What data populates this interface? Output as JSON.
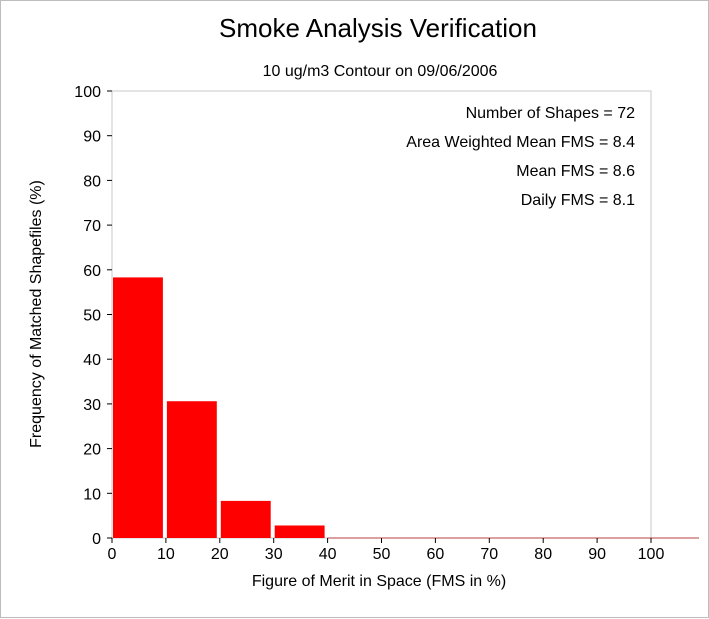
{
  "chart_data": {
    "type": "bar",
    "title": "Smoke Analysis Verification",
    "subtitle": "10 ug/m3 Contour on 09/06/2006",
    "xlabel": "Figure of Merit in Space (FMS in %)",
    "ylabel": "Frequency of Matched Shapefiles (%)",
    "xlim": [
      0,
      100
    ],
    "ylim": [
      0,
      100
    ],
    "x_ticks": [
      "0",
      "10",
      "20",
      "30",
      "40",
      "50",
      "60",
      "70",
      "80",
      "90",
      "100"
    ],
    "y_ticks": [
      "0",
      "10",
      "20",
      "30",
      "40",
      "50",
      "60",
      "70",
      "80",
      "90",
      "100"
    ],
    "bins": [
      {
        "from": 0,
        "to": 10,
        "value": 58.3
      },
      {
        "from": 10,
        "to": 20,
        "value": 30.6
      },
      {
        "from": 20,
        "to": 30,
        "value": 8.3
      },
      {
        "from": 30,
        "to": 40,
        "value": 2.8
      },
      {
        "from": 40,
        "to": 50,
        "value": 0
      },
      {
        "from": 50,
        "to": 60,
        "value": 0
      },
      {
        "from": 60,
        "to": 70,
        "value": 0
      },
      {
        "from": 70,
        "to": 80,
        "value": 0
      },
      {
        "from": 80,
        "to": 90,
        "value": 0
      },
      {
        "from": 90,
        "to": 100,
        "value": 0
      }
    ],
    "stats": [
      "Number of Shapes = 72",
      "Area Weighted Mean FMS = 8.4",
      "Mean FMS = 8.6",
      "Daily FMS = 8.1"
    ],
    "bar_color": "#ff0000",
    "grid": false
  }
}
